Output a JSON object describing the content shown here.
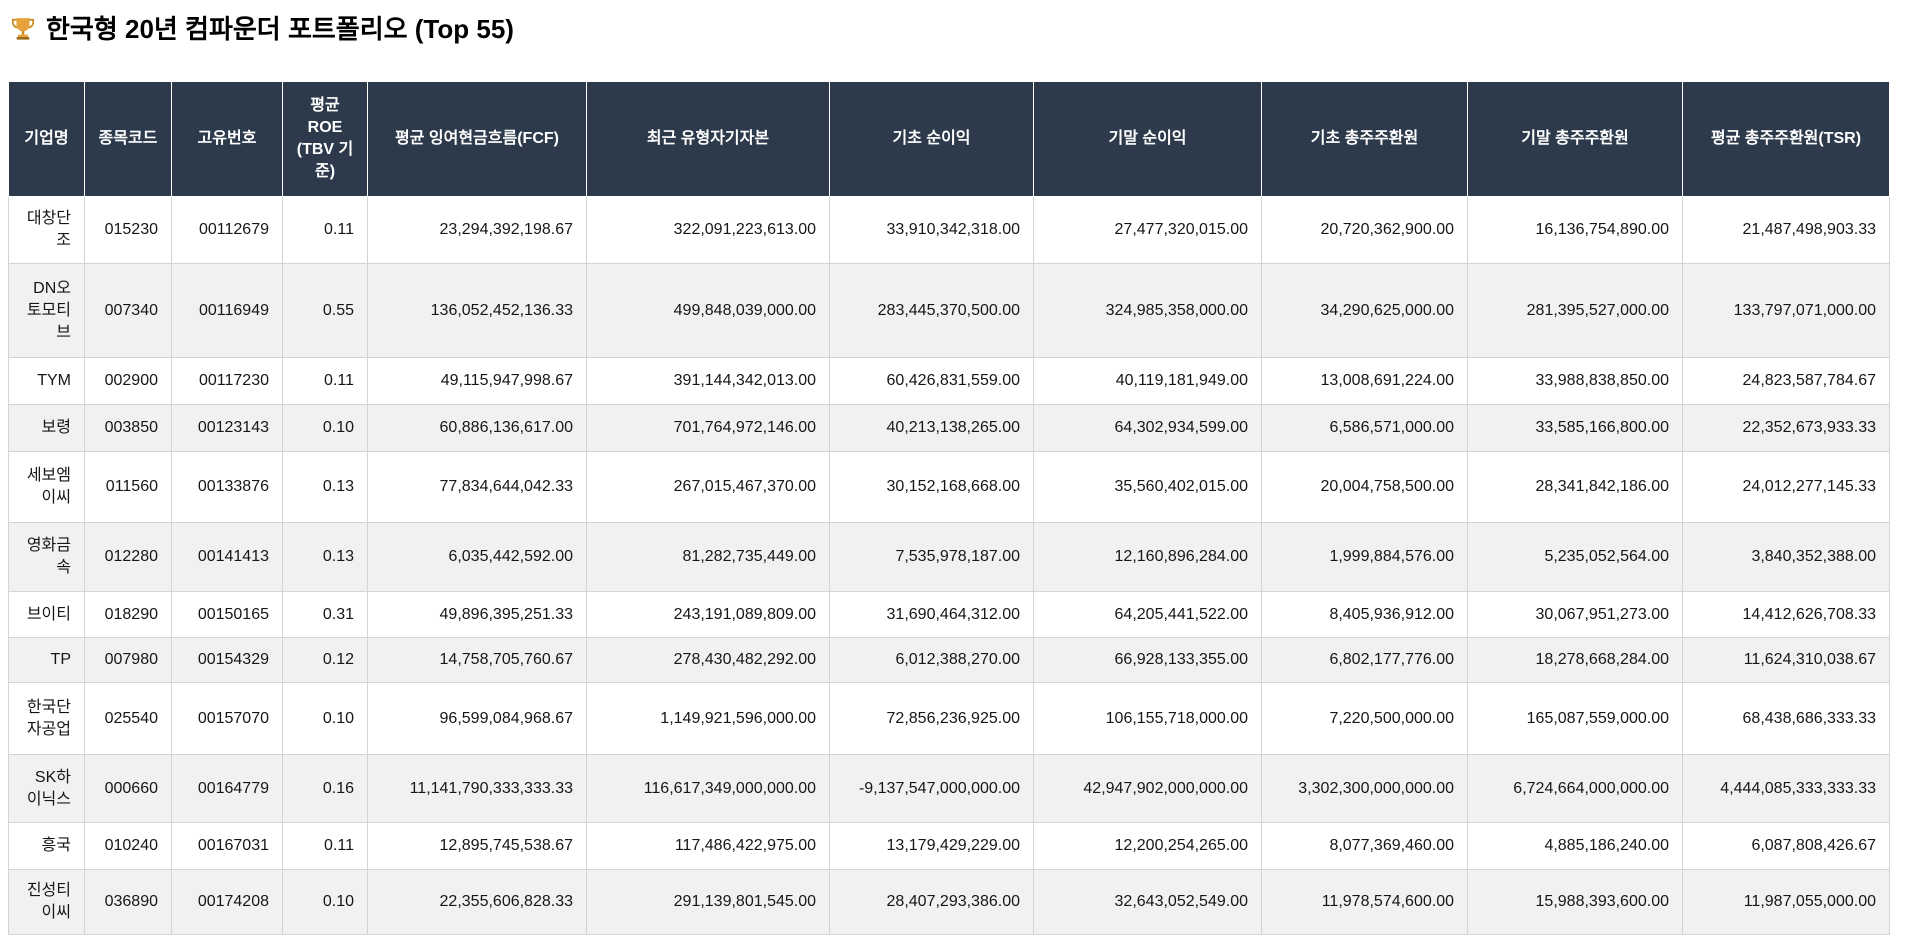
{
  "header": {
    "icon": "trophy-icon",
    "title": "한국형 20년 컴파운더 포트폴리오 (Top 55)"
  },
  "table": {
    "columns": [
      "기업명",
      "종목코드",
      "고유번호",
      "평균 ROE (TBV 기준)",
      "평균 잉여현금흐름(FCF)",
      "최근 유형자기자본",
      "기초 순이익",
      "기말 순이익",
      "기초 총주주환원",
      "기말 총주주환원",
      "평균 총주주환원(TSR)"
    ],
    "rows": [
      [
        "대창단조",
        "015230",
        "00112679",
        "0.11",
        "23,294,392,198.67",
        "322,091,223,613.00",
        "33,910,342,318.00",
        "27,477,320,015.00",
        "20,720,362,900.00",
        "16,136,754,890.00",
        "21,487,498,903.33"
      ],
      [
        "DN오토모티브",
        "007340",
        "00116949",
        "0.55",
        "136,052,452,136.33",
        "499,848,039,000.00",
        "283,445,370,500.00",
        "324,985,358,000.00",
        "34,290,625,000.00",
        "281,395,527,000.00",
        "133,797,071,000.00"
      ],
      [
        "TYM",
        "002900",
        "00117230",
        "0.11",
        "49,115,947,998.67",
        "391,144,342,013.00",
        "60,426,831,559.00",
        "40,119,181,949.00",
        "13,008,691,224.00",
        "33,988,838,850.00",
        "24,823,587,784.67"
      ],
      [
        "보령",
        "003850",
        "00123143",
        "0.10",
        "60,886,136,617.00",
        "701,764,972,146.00",
        "40,213,138,265.00",
        "64,302,934,599.00",
        "6,586,571,000.00",
        "33,585,166,800.00",
        "22,352,673,933.33"
      ],
      [
        "세보엠이씨",
        "011560",
        "00133876",
        "0.13",
        "77,834,644,042.33",
        "267,015,467,370.00",
        "30,152,168,668.00",
        "35,560,402,015.00",
        "20,004,758,500.00",
        "28,341,842,186.00",
        "24,012,277,145.33"
      ],
      [
        "영화금속",
        "012280",
        "00141413",
        "0.13",
        "6,035,442,592.00",
        "81,282,735,449.00",
        "7,535,978,187.00",
        "12,160,896,284.00",
        "1,999,884,576.00",
        "5,235,052,564.00",
        "3,840,352,388.00"
      ],
      [
        "브이티",
        "018290",
        "00150165",
        "0.31",
        "49,896,395,251.33",
        "243,191,089,809.00",
        "31,690,464,312.00",
        "64,205,441,522.00",
        "8,405,936,912.00",
        "30,067,951,273.00",
        "14,412,626,708.33"
      ],
      [
        "TP",
        "007980",
        "00154329",
        "0.12",
        "14,758,705,760.67",
        "278,430,482,292.00",
        "6,012,388,270.00",
        "66,928,133,355.00",
        "6,802,177,776.00",
        "18,278,668,284.00",
        "11,624,310,038.67"
      ],
      [
        "한국단자공업",
        "025540",
        "00157070",
        "0.10",
        "96,599,084,968.67",
        "1,149,921,596,000.00",
        "72,856,236,925.00",
        "106,155,718,000.00",
        "7,220,500,000.00",
        "165,087,559,000.00",
        "68,438,686,333.33"
      ],
      [
        "SK하이닉스",
        "000660",
        "00164779",
        "0.16",
        "11,141,790,333,333.33",
        "116,617,349,000,000.00",
        "-9,137,547,000,000.00",
        "42,947,902,000,000.00",
        "3,302,300,000,000.00",
        "6,724,664,000,000.00",
        "4,444,085,333,333.33"
      ],
      [
        "흥국",
        "010240",
        "00167031",
        "0.11",
        "12,895,745,538.67",
        "117,486,422,975.00",
        "13,179,429,229.00",
        "12,200,254,265.00",
        "8,077,369,460.00",
        "4,885,186,240.00",
        "6,087,808,426.67"
      ],
      [
        "진성티이씨",
        "036890",
        "00174208",
        "0.10",
        "22,355,606,828.33",
        "291,139,801,545.00",
        "28,407,293,386.00",
        "32,643,052,549.00",
        "11,978,574,600.00",
        "15,988,393,600.00",
        "11,987,055,000.00"
      ]
    ]
  },
  "colors": {
    "header_bg": "#2d3a4b",
    "header_text": "#ffffff",
    "row_stripe": "#f1f1f2",
    "border": "#d4d4d4",
    "text": "#161616"
  }
}
